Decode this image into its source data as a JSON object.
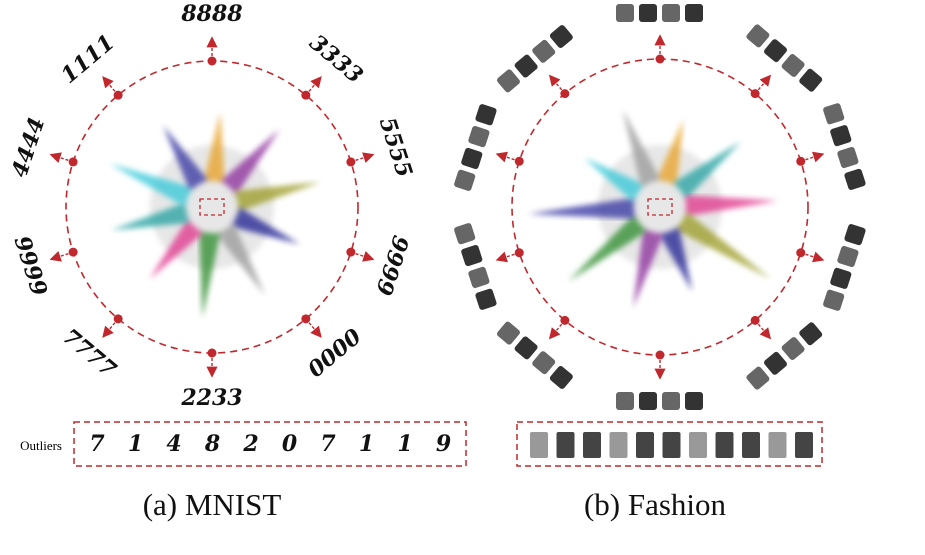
{
  "outliers_label": "Outliers",
  "panels": [
    {
      "caption": "(a) MNIST",
      "digit_groups": [
        "8888",
        "3333",
        "5555",
        "6666",
        "0000",
        "2233",
        "7777",
        "9999",
        "4444",
        "1111"
      ],
      "outliers": [
        "7",
        "1",
        "4",
        "8",
        "2",
        "0",
        "7",
        "1",
        "1",
        "9"
      ]
    },
    {
      "caption": "(b) Fashion"
    }
  ]
}
